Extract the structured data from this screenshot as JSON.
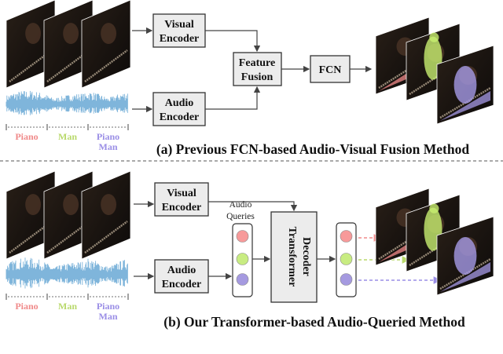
{
  "top": {
    "visual_encoder": [
      "Visual",
      "Encoder"
    ],
    "audio_encoder": [
      "Audio",
      "Encoder"
    ],
    "feature_fusion": [
      "Feature",
      "Fusion"
    ],
    "fcn": "FCN",
    "segments": [
      {
        "lines": [
          "Piano"
        ],
        "color": "#f08a8a"
      },
      {
        "lines": [
          "Man"
        ],
        "color": "#b9d96c"
      },
      {
        "lines": [
          "Piano",
          "Man"
        ],
        "color": "#9a8ee6"
      }
    ],
    "caption": "(a) Previous FCN-based Audio-Visual Fusion Method"
  },
  "bottom": {
    "visual_encoder": [
      "Visual",
      "Encoder"
    ],
    "audio_encoder": [
      "Audio",
      "Encoder"
    ],
    "audio_queries": [
      "Audio",
      "Queries"
    ],
    "transformer_decoder": [
      "Transformer",
      "Decoder"
    ],
    "segments": [
      {
        "lines": [
          "Piano"
        ],
        "color": "#f08a8a"
      },
      {
        "lines": [
          "Man"
        ],
        "color": "#b9d96c"
      },
      {
        "lines": [
          "Piano",
          "Man"
        ],
        "color": "#9a8ee6"
      }
    ],
    "query_colors": [
      "#f79a9a",
      "#c8ec82",
      "#a59ae0"
    ],
    "caption": "(b) Our Transformer-based Audio-Queried Method"
  },
  "colors": {
    "waveform": "#7fb5db",
    "mask_piano": "#f08a8a",
    "mask_man": "#c8ef70",
    "mask_both": "#a59ae6"
  }
}
